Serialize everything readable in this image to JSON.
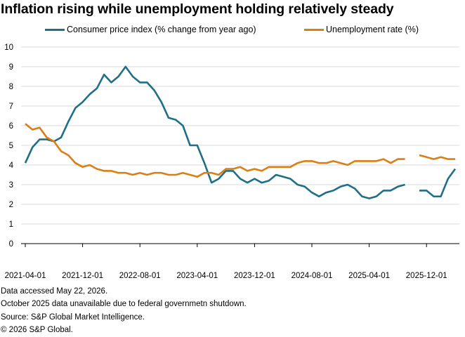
{
  "title": "Inflation rising while unemployment holding relatively steady",
  "notes": [
    "Data accessed May 22, 2026.",
    "October 2025 data unavailable due to federal governmetn shutdown.",
    "Source: S&P Global Market Intelligence.",
    "© 2026 S&P Global."
  ],
  "colors": {
    "cpi": "#1f6f86",
    "unemployment": "#db7f14",
    "grid": "#d9d9d9",
    "axis": "#000000"
  },
  "chart_data": {
    "type": "line",
    "title": "Inflation rising while unemployment holding relatively steady",
    "xlabel": "",
    "ylabel": "",
    "ylim": [
      0,
      10
    ],
    "yticks": [
      0,
      1,
      2,
      3,
      4,
      5,
      6,
      7,
      8,
      9,
      10
    ],
    "xlim": [
      "2021-04-01",
      "2026-04-01"
    ],
    "xticks": [
      "2021-04-01",
      "2021-12-01",
      "2022-08-01",
      "2023-04-01",
      "2023-12-01",
      "2024-08-01",
      "2025-04-01",
      "2025-12-01"
    ],
    "grid": "horizontal",
    "legend": "top",
    "x": [
      "2021-04-01",
      "2021-05-01",
      "2021-06-01",
      "2021-07-01",
      "2021-08-01",
      "2021-09-01",
      "2021-10-01",
      "2021-11-01",
      "2021-12-01",
      "2022-01-01",
      "2022-02-01",
      "2022-03-01",
      "2022-04-01",
      "2022-05-01",
      "2022-06-01",
      "2022-07-01",
      "2022-08-01",
      "2022-09-01",
      "2022-10-01",
      "2022-11-01",
      "2022-12-01",
      "2023-01-01",
      "2023-02-01",
      "2023-03-01",
      "2023-04-01",
      "2023-05-01",
      "2023-06-01",
      "2023-07-01",
      "2023-08-01",
      "2023-09-01",
      "2023-10-01",
      "2023-11-01",
      "2023-12-01",
      "2024-01-01",
      "2024-02-01",
      "2024-03-01",
      "2024-04-01",
      "2024-05-01",
      "2024-06-01",
      "2024-07-01",
      "2024-08-01",
      "2024-09-01",
      "2024-10-01",
      "2024-11-01",
      "2024-12-01",
      "2025-01-01",
      "2025-02-01",
      "2025-03-01",
      "2025-04-01",
      "2025-05-01",
      "2025-06-01",
      "2025-07-01",
      "2025-08-01",
      "2025-09-01",
      "2025-10-01",
      "2025-11-01",
      "2025-12-01",
      "2026-01-01",
      "2026-02-01",
      "2026-03-01",
      "2026-04-01"
    ],
    "series": [
      {
        "name": "Consumer price index (% change from year ago)",
        "values": [
          4.1,
          4.9,
          5.3,
          5.3,
          5.2,
          5.4,
          6.2,
          6.9,
          7.2,
          7.6,
          7.9,
          8.6,
          8.2,
          8.5,
          9.0,
          8.5,
          8.2,
          8.2,
          7.8,
          7.2,
          6.4,
          6.3,
          6.0,
          5.0,
          5.0,
          4.1,
          3.1,
          3.3,
          3.7,
          3.7,
          3.3,
          3.1,
          3.3,
          3.1,
          3.2,
          3.5,
          3.4,
          3.3,
          3.0,
          2.9,
          2.6,
          2.4,
          2.6,
          2.7,
          2.9,
          3.0,
          2.8,
          2.4,
          2.3,
          2.4,
          2.7,
          2.7,
          2.9,
          3.0,
          null,
          2.7,
          2.7,
          2.4,
          2.4,
          3.3,
          3.8
        ]
      },
      {
        "name": "Unemployment rate (%)",
        "values": [
          6.1,
          5.8,
          5.9,
          5.4,
          5.2,
          4.7,
          4.5,
          4.1,
          3.9,
          4.0,
          3.8,
          3.7,
          3.7,
          3.6,
          3.6,
          3.5,
          3.6,
          3.5,
          3.6,
          3.6,
          3.5,
          3.5,
          3.6,
          3.5,
          3.4,
          3.6,
          3.6,
          3.5,
          3.8,
          3.8,
          3.9,
          3.7,
          3.8,
          3.7,
          3.9,
          3.9,
          3.9,
          3.9,
          4.1,
          4.2,
          4.2,
          4.1,
          4.1,
          4.2,
          4.1,
          4.0,
          4.2,
          4.2,
          4.2,
          4.2,
          4.3,
          4.1,
          4.3,
          4.3,
          null,
          4.5,
          4.4,
          4.3,
          4.4,
          4.3,
          4.3
        ]
      }
    ]
  }
}
